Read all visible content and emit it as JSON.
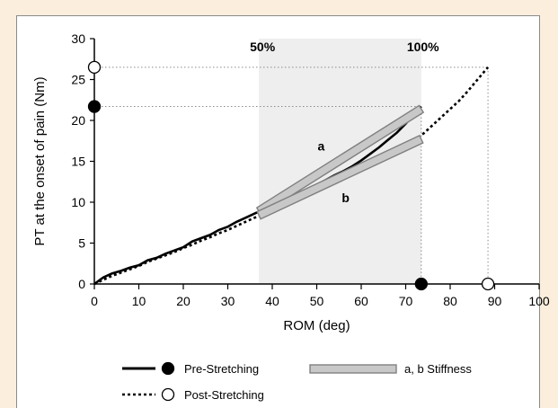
{
  "colors": {
    "page_background": "#fbeedd",
    "panel_background": "#ffffff",
    "shade": "#eeeeee",
    "stiffness_bar_fill": "#c8c8c8",
    "stiffness_bar_stroke": "#808080",
    "guide_line": "#8c8c8c"
  },
  "chart_data": {
    "type": "line",
    "xlabel": "ROM (deg)",
    "ylabel": "PT at the onset of pain (Nm)",
    "xlim": [
      0,
      100
    ],
    "ylim": [
      0,
      30
    ],
    "xticks": [
      0,
      10,
      20,
      30,
      40,
      50,
      60,
      70,
      80,
      90,
      100
    ],
    "yticks": [
      0,
      5,
      10,
      15,
      20,
      25,
      30
    ],
    "grid": false,
    "shaded_region": {
      "x": [
        37,
        73.5
      ],
      "left_label": "50%",
      "right_label": "100%"
    },
    "series": [
      {
        "name": "Pre-Stretching",
        "style": "solid",
        "marker": "filled-circle",
        "x": [
          0,
          2,
          4,
          6,
          8,
          10,
          12,
          14,
          16,
          18,
          20,
          22,
          24,
          26,
          28,
          30,
          32,
          34,
          36,
          38,
          40,
          42,
          44,
          46,
          48,
          50,
          52,
          54,
          56,
          58,
          60,
          62,
          64,
          66,
          68,
          70,
          72,
          73.5
        ],
        "y": [
          0,
          0.8,
          1.3,
          1.6,
          2.0,
          2.3,
          2.9,
          3.2,
          3.7,
          4.1,
          4.5,
          5.2,
          5.6,
          6.0,
          6.6,
          7.0,
          7.6,
          8.1,
          8.6,
          9.1,
          9.6,
          10.1,
          10.6,
          11.1,
          11.6,
          12.1,
          12.7,
          13.3,
          13.8,
          14.4,
          15.1,
          15.9,
          16.7,
          17.6,
          18.5,
          19.6,
          20.8,
          21.7
        ],
        "max_rom": 73.5,
        "max_pt": 21.7
      },
      {
        "name": "Post-Stretching",
        "style": "dotted",
        "marker": "open-circle",
        "x": [
          0,
          2,
          4,
          6,
          8,
          10,
          12,
          14,
          16,
          18,
          20,
          22,
          24,
          26,
          28,
          30,
          32,
          34,
          36,
          38,
          40,
          42,
          44,
          46,
          48,
          50,
          52,
          54,
          56,
          58,
          60,
          62,
          64,
          66,
          68,
          70,
          72,
          74,
          76,
          78,
          80,
          82,
          84,
          86,
          88.5
        ],
        "y": [
          0,
          0.5,
          1.0,
          1.4,
          1.8,
          2.2,
          2.7,
          3.1,
          3.5,
          3.9,
          4.4,
          4.8,
          5.3,
          5.7,
          6.2,
          6.6,
          7.1,
          7.6,
          8.1,
          8.5,
          9.0,
          9.5,
          10.0,
          10.5,
          11.0,
          11.5,
          12.0,
          12.5,
          13.0,
          13.5,
          14.0,
          14.6,
          15.2,
          15.8,
          16.4,
          17.0,
          17.6,
          18.4,
          19.4,
          20.4,
          21.4,
          22.4,
          23.6,
          24.9,
          26.5
        ],
        "max_rom": 88.5,
        "max_pt": 26.5
      }
    ],
    "stiffness_bars": [
      {
        "label": "a",
        "x": [
          37,
          73.5
        ],
        "y": [
          8.9,
          21.4
        ],
        "label_at": [
          51,
          16.3
        ]
      },
      {
        "label": "b",
        "x": [
          37,
          73.5
        ],
        "y": [
          8.4,
          17.7
        ],
        "label_at": [
          56.5,
          10.0
        ]
      }
    ],
    "legend": {
      "placement": "bottom",
      "entries": [
        {
          "label": "Pre-Stretching",
          "kind": "line-solid-filled-circle"
        },
        {
          "label": "Post-Stretching",
          "kind": "line-dotted-open-circle"
        },
        {
          "label": "a, b  Stiffness",
          "kind": "bar"
        }
      ]
    }
  }
}
